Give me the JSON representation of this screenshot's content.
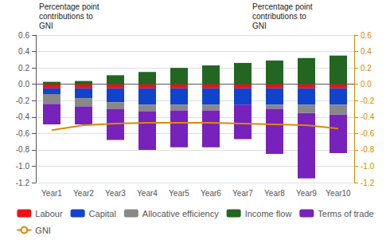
{
  "chart_data": {
    "type": "bar",
    "stacked": true,
    "categories": [
      "Year1",
      "Year2",
      "Year3",
      "Year4",
      "Year5",
      "Year6",
      "Year7",
      "Year8",
      "Year9",
      "Year10"
    ],
    "series": [
      {
        "name": "Labour",
        "type": "bar",
        "color": "#ee1111",
        "values": [
          -0.05,
          -0.05,
          -0.05,
          -0.05,
          -0.05,
          -0.05,
          -0.05,
          -0.05,
          -0.05,
          -0.05
        ]
      },
      {
        "name": "Capital",
        "type": "bar",
        "color": "#1144cc",
        "values": [
          -0.07,
          -0.12,
          -0.17,
          -0.2,
          -0.2,
          -0.2,
          -0.2,
          -0.2,
          -0.2,
          -0.2
        ]
      },
      {
        "name": "Allocative efficiency",
        "type": "bar",
        "color": "#888888",
        "values": [
          -0.12,
          -0.1,
          -0.08,
          -0.08,
          -0.07,
          -0.07,
          0.0,
          -0.05,
          -0.1,
          -0.12
        ]
      },
      {
        "name": "Income flow",
        "type": "bar",
        "color": "#226622",
        "values": [
          0.03,
          0.04,
          0.11,
          0.15,
          0.2,
          0.23,
          0.26,
          0.29,
          0.32,
          0.35
        ]
      },
      {
        "name": "Terms of trade",
        "type": "bar",
        "color": "#7722bb",
        "values": [
          -0.25,
          -0.22,
          -0.38,
          -0.47,
          -0.45,
          -0.45,
          -0.42,
          -0.55,
          -0.8,
          -0.47
        ]
      },
      {
        "name": "GNI",
        "type": "line",
        "color": "#dd8800",
        "values": [
          -0.56,
          -0.5,
          -0.48,
          -0.47,
          -0.47,
          -0.47,
          -0.48,
          -0.49,
          -0.5,
          -0.54
        ]
      }
    ],
    "ylim": [
      -1.2,
      0.6
    ],
    "yticks": [
      -1.2,
      {
        "value": -1.0,
        "label": "-1.0"
      },
      -0.8,
      -0.6,
      -0.4,
      -0.2,
      {
        "value": 0,
        "label": "0.0"
      },
      0.2,
      0.4,
      0.6
    ],
    "y2lim": [
      -1.2,
      0.6
    ],
    "y2ticks": [
      -1.2,
      {
        "value": -1.0,
        "label": "-1.0"
      },
      -0.8,
      -0.6,
      -0.4,
      -0.2,
      {
        "value": 0,
        "label": "0.0"
      },
      0.2,
      0.4,
      0.6
    ],
    "annotations": [
      "Percentage point\ncontributions to\nGNI",
      "Percentage point\ncontributions to\nGNI"
    ],
    "grid": true,
    "legend": "bottom"
  }
}
